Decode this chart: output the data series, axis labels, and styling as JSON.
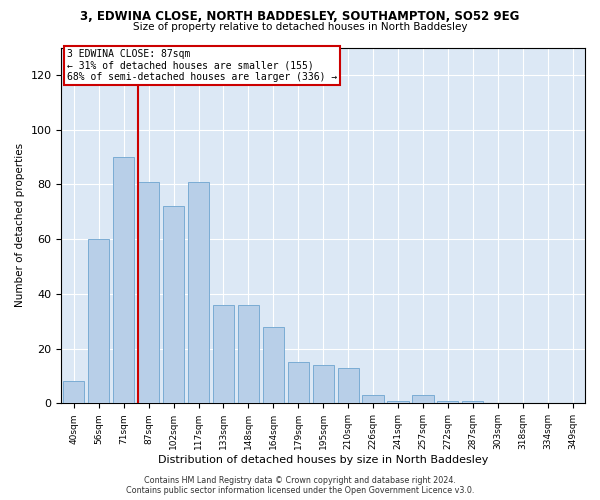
{
  "title": "3, EDWINA CLOSE, NORTH BADDESLEY, SOUTHAMPTON, SO52 9EG",
  "subtitle": "Size of property relative to detached houses in North Baddesley",
  "xlabel": "Distribution of detached houses by size in North Baddesley",
  "ylabel": "Number of detached properties",
  "categories": [
    "40sqm",
    "56sqm",
    "71sqm",
    "87sqm",
    "102sqm",
    "117sqm",
    "133sqm",
    "148sqm",
    "164sqm",
    "179sqm",
    "195sqm",
    "210sqm",
    "226sqm",
    "241sqm",
    "257sqm",
    "272sqm",
    "287sqm",
    "303sqm",
    "318sqm",
    "334sqm",
    "349sqm"
  ],
  "values": [
    8,
    60,
    90,
    81,
    72,
    81,
    36,
    36,
    28,
    15,
    14,
    13,
    3,
    1,
    3,
    1,
    1,
    0,
    0,
    0,
    0
  ],
  "bar_color": "#b8cfe8",
  "bar_edge_color": "#7aacd4",
  "marker_index": 3,
  "marker_label": "3 EDWINA CLOSE: 87sqm",
  "annotation_line1": "← 31% of detached houses are smaller (155)",
  "annotation_line2": "68% of semi-detached houses are larger (336) →",
  "marker_color": "#cc0000",
  "annotation_box_edge": "#cc0000",
  "ylim": [
    0,
    130
  ],
  "yticks": [
    0,
    20,
    40,
    60,
    80,
    100,
    120
  ],
  "background_color": "#dce8f5",
  "footer1": "Contains HM Land Registry data © Crown copyright and database right 2024.",
  "footer2": "Contains public sector information licensed under the Open Government Licence v3.0."
}
